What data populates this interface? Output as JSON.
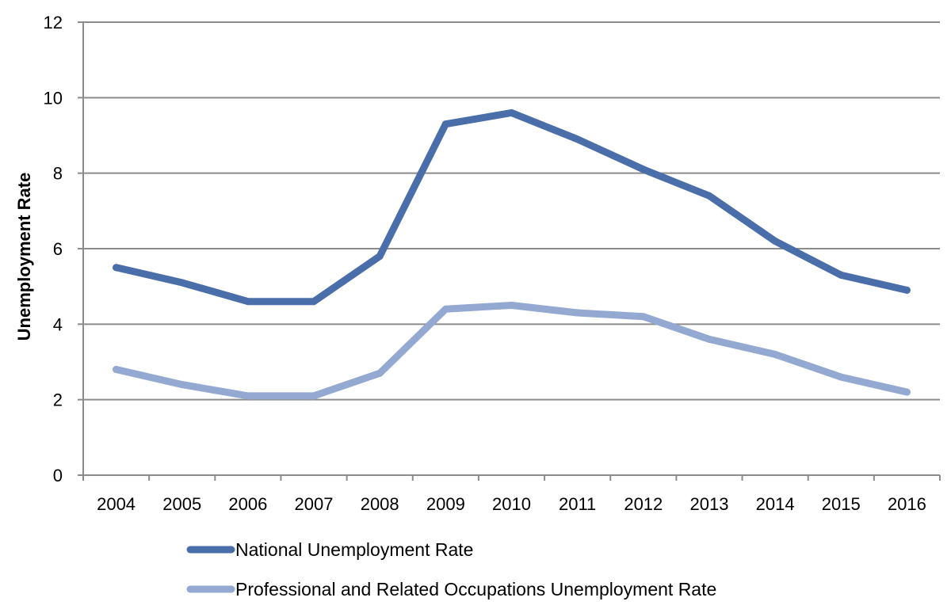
{
  "chart_data": {
    "type": "line",
    "title": "",
    "xlabel": "",
    "ylabel": "Unemployment Rate",
    "ylim": [
      0,
      12
    ],
    "yticks": [
      "0",
      "2",
      "4",
      "6",
      "8",
      "10",
      "12"
    ],
    "categories": [
      "2004",
      "2005",
      "2006",
      "2007",
      "2008",
      "2009",
      "2010",
      "2011",
      "2012",
      "2013",
      "2014",
      "2015",
      "2016"
    ],
    "grid": true,
    "legend_position": "bottom-left",
    "series": [
      {
        "name": "National Unemployment Rate",
        "color": "#4a6ea9",
        "values": [
          5.5,
          5.1,
          4.6,
          4.6,
          5.8,
          9.3,
          9.6,
          8.9,
          8.1,
          7.4,
          6.2,
          5.3,
          4.9
        ]
      },
      {
        "name": "Professional and Related Occupations Unemployment Rate",
        "color": "#94a9d1",
        "values": [
          2.8,
          2.4,
          2.1,
          2.1,
          2.7,
          4.4,
          4.5,
          4.3,
          4.2,
          3.6,
          3.2,
          2.6,
          2.2
        ]
      }
    ]
  }
}
